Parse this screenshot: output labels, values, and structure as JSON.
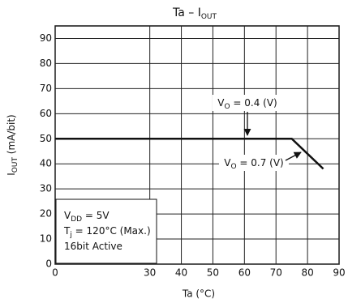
{
  "chart_data": {
    "type": "line",
    "title": [
      "Ta  –  I",
      "OUT"
    ],
    "xlabel": "Ta   (°C)",
    "ylabel": [
      "I",
      "OUT",
      "   (mA/bit)"
    ],
    "x": [
      0,
      75,
      85
    ],
    "series": [
      {
        "name": "I",
        "color": "#111111",
        "values": [
          50,
          50,
          38
        ]
      }
    ],
    "xlim": [
      0,
      90
    ],
    "xticks": [
      0,
      30,
      40,
      50,
      60,
      70,
      80,
      90
    ],
    "ylim": [
      0,
      95
    ],
    "yticks": [
      0,
      10,
      20,
      30,
      40,
      50,
      60,
      70,
      80,
      90
    ],
    "grid": true,
    "annotations": [
      [
        "V",
        "O",
        " = 0.4 (V)"
      ],
      [
        "V",
        "O",
        " = 0.7 (V)"
      ]
    ],
    "conditions": [
      [
        "V",
        "DD",
        " = 5V"
      ],
      [
        "T",
        "j",
        " = 120°C (Max.)"
      ],
      [
        "16bit Active"
      ]
    ]
  }
}
